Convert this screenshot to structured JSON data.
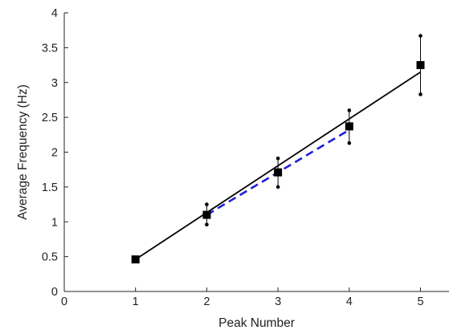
{
  "chart_data": {
    "type": "scatter",
    "title": "",
    "xlabel": "Peak Number",
    "ylabel": "Average Frequency (Hz)",
    "xlim": [
      0,
      5.4
    ],
    "ylim": [
      0,
      4
    ],
    "x_ticks": [
      0,
      1,
      2,
      3,
      4,
      5
    ],
    "x_tick_labels": [
      "0",
      "1",
      "2",
      "3",
      "4",
      "5"
    ],
    "y_ticks": [
      0,
      0.5,
      1,
      1.5,
      2,
      2.5,
      3,
      3.5,
      4
    ],
    "y_tick_labels": [
      "0",
      "0.5",
      "1",
      "1.5",
      "2",
      "2.5",
      "3",
      "3.5",
      "4"
    ],
    "grid": false,
    "legend": null,
    "series": [
      {
        "type": "scatter-errorbar",
        "marker": "square",
        "color": "#000000",
        "x": [
          1,
          2,
          3,
          4,
          5
        ],
        "y": [
          0.46,
          1.1,
          1.71,
          2.37,
          3.25
        ],
        "y_lower": [
          0.46,
          0.96,
          1.5,
          2.13,
          2.83
        ],
        "y_upper": [
          0.46,
          1.25,
          1.91,
          2.6,
          3.67
        ]
      },
      {
        "type": "line",
        "style": "solid",
        "color": "#000000",
        "x": [
          1,
          5
        ],
        "y": [
          0.46,
          3.15
        ]
      },
      {
        "type": "line",
        "style": "dashed",
        "color": "#1f1fd6",
        "x": [
          2,
          3,
          4
        ],
        "y": [
          1.1,
          1.71,
          2.32
        ]
      }
    ]
  }
}
